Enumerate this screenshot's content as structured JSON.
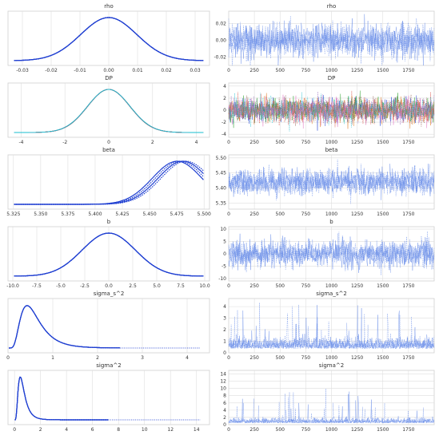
{
  "figure": {
    "background": "#ffffff",
    "grid": true
  },
  "chart_data": [
    {
      "type": "line",
      "title": "rho",
      "view": "density",
      "xlim": [
        -0.035,
        0.035
      ],
      "xticks": [
        "-0.03",
        "-0.02",
        "-0.01",
        "0.00",
        "0.01",
        "0.02",
        "0.03"
      ],
      "dist": {
        "kind": "normal",
        "center": 0.0,
        "spread": 0.01,
        "skew": 0
      },
      "chains": 4,
      "colors": [
        "#1f3fd1",
        "#1f3fd1",
        "#1f3fd1",
        "#1f3fd1"
      ]
    },
    {
      "type": "line",
      "title": "rho",
      "view": "trace",
      "xlim": [
        0,
        2000
      ],
      "ylim": [
        -0.03,
        0.035
      ],
      "xticks": [
        "0",
        "250",
        "500",
        "750",
        "1000",
        "1250",
        "1500",
        "1750"
      ],
      "yticks": [
        "-0.02",
        "0.00",
        "0.02"
      ],
      "trace": {
        "center": 0.0,
        "amplitude": 0.01,
        "spikes": 0
      },
      "chains": 4,
      "colors": [
        "#6a8de8",
        "#6a8de8",
        "#6a8de8",
        "#6a8de8"
      ]
    },
    {
      "type": "line",
      "title": "DP",
      "view": "density",
      "xlim": [
        -4.6,
        4.6
      ],
      "xticks": [
        "-4",
        "-2",
        "0",
        "2",
        "4"
      ],
      "dist": {
        "kind": "normal",
        "center": 0.0,
        "spread": 1.0,
        "skew": 0
      },
      "chains": 8,
      "colors": [
        "#1f3fd1",
        "#d63a2e",
        "#2ca02c",
        "#9467bd",
        "#e07b22",
        "#8c564b",
        "#e377c2",
        "#17becf"
      ]
    },
    {
      "type": "line",
      "title": "DP",
      "view": "trace",
      "xlim": [
        0,
        2000
      ],
      "ylim": [
        -4.5,
        4.5
      ],
      "xticks": [
        "0",
        "250",
        "500",
        "750",
        "1000",
        "1250",
        "1500",
        "1750"
      ],
      "yticks": [
        "-4",
        "-2",
        "0",
        "2",
        "4"
      ],
      "trace": {
        "center": 0.0,
        "amplitude": 1.0,
        "spikes": 0
      },
      "chains": 8,
      "colors": [
        "#1f3fd1",
        "#d63a2e",
        "#2ca02c",
        "#9467bd",
        "#e07b22",
        "#8c564b",
        "#e377c2",
        "#17becf"
      ]
    },
    {
      "type": "line",
      "title": "beta",
      "view": "density",
      "xlim": [
        5.32,
        5.505
      ],
      "xticks": [
        "5.325",
        "5.350",
        "5.375",
        "5.400",
        "5.425",
        "5.450",
        "5.475",
        "5.500"
      ],
      "dist": {
        "kind": "normal",
        "center": 5.42,
        "spread": 0.022,
        "skew": 0
      },
      "chains": 4,
      "colors": [
        "#1f3fd1",
        "#1f3fd1",
        "#1f3fd1",
        "#1f3fd1"
      ]
    },
    {
      "type": "line",
      "title": "beta",
      "view": "trace",
      "xlim": [
        0,
        2000
      ],
      "ylim": [
        5.33,
        5.51
      ],
      "xticks": [
        "0",
        "250",
        "500",
        "750",
        "1000",
        "1250",
        "1500",
        "1750"
      ],
      "yticks": [
        "5.35",
        "5.40",
        "5.45",
        "5.50"
      ],
      "trace": {
        "center": 5.42,
        "amplitude": 0.02,
        "spikes": 0
      },
      "chains": 4,
      "colors": [
        "#6a8de8",
        "#6a8de8",
        "#6a8de8",
        "#6a8de8"
      ]
    },
    {
      "type": "line",
      "title": "b",
      "view": "density",
      "xlim": [
        -10.5,
        10.5
      ],
      "xticks": [
        "-10.0",
        "-7.5",
        "-5.0",
        "-2.5",
        "0.0",
        "2.5",
        "5.0",
        "7.5",
        "10.0"
      ],
      "dist": {
        "kind": "normal",
        "center": 0.0,
        "spread": 2.7,
        "skew": 0
      },
      "chains": 4,
      "colors": [
        "#1f3fd1",
        "#1f3fd1",
        "#1f3fd1",
        "#1f3fd1"
      ]
    },
    {
      "type": "line",
      "title": "b",
      "view": "trace",
      "xlim": [
        0,
        2000
      ],
      "ylim": [
        -11,
        11
      ],
      "xticks": [
        "0",
        "250",
        "500",
        "750",
        "1000",
        "1250",
        "1500",
        "1750"
      ],
      "yticks": [
        "-10",
        "-5",
        "0",
        "5",
        "10"
      ],
      "trace": {
        "center": 0.0,
        "amplitude": 2.7,
        "spikes": 0
      },
      "chains": 4,
      "colors": [
        "#6a8de8",
        "#6a8de8",
        "#6a8de8",
        "#6a8de8"
      ]
    },
    {
      "type": "line",
      "title": "sigma_s^2",
      "view": "density",
      "xlim": [
        0,
        4.5
      ],
      "xticks": [
        "0",
        "1",
        "2",
        "3",
        "4"
      ],
      "dist": {
        "kind": "lognormal",
        "center": 0.55,
        "spread": 0.5,
        "skew": 1,
        "tail_end": [
          2.5,
          4.3
        ]
      },
      "chains": 4,
      "colors": [
        "#1f3fd1",
        "#1f3fd1",
        "#1f3fd1",
        "#1f3fd1"
      ]
    },
    {
      "type": "line",
      "title": "sigma_s^2",
      "view": "trace",
      "xlim": [
        0,
        2000
      ],
      "ylim": [
        0,
        4.7
      ],
      "xticks": [
        "0",
        "250",
        "500",
        "750",
        "1000",
        "1250",
        "1500",
        "1750"
      ],
      "yticks": [
        "0",
        "1",
        "2",
        "3",
        "4"
      ],
      "trace": {
        "center": 0.6,
        "amplitude": 0.3,
        "spikes": 1
      },
      "chains": 4,
      "colors": [
        "#6a8de8",
        "#6a8de8",
        "#6a8de8",
        "#6a8de8"
      ]
    },
    {
      "type": "line",
      "title": "sigma^2",
      "view": "density",
      "xlim": [
        -0.5,
        15
      ],
      "xticks": [
        "0",
        "2",
        "4",
        "6",
        "8",
        "10",
        "12",
        "14"
      ],
      "dist": {
        "kind": "lognormal",
        "center": 0.6,
        "spread": 0.55,
        "skew": 1,
        "tail_end": [
          7.2,
          14.3
        ]
      },
      "chains": 4,
      "colors": [
        "#1f3fd1",
        "#1f3fd1",
        "#1f3fd1",
        "#1f3fd1"
      ]
    },
    {
      "type": "line",
      "title": "sigma^2",
      "view": "trace",
      "xlim": [
        0,
        2000
      ],
      "ylim": [
        0,
        15
      ],
      "xticks": [
        "0",
        "250",
        "500",
        "750",
        "1000",
        "1250",
        "1500",
        "1750"
      ],
      "yticks": [
        "0",
        "2",
        "4",
        "6",
        "8",
        "10",
        "12",
        "14"
      ],
      "trace": {
        "center": 0.7,
        "amplitude": 0.35,
        "spikes": 2
      },
      "chains": 4,
      "colors": [
        "#6a8de8",
        "#6a8de8",
        "#6a8de8",
        "#6a8de8"
      ]
    }
  ]
}
